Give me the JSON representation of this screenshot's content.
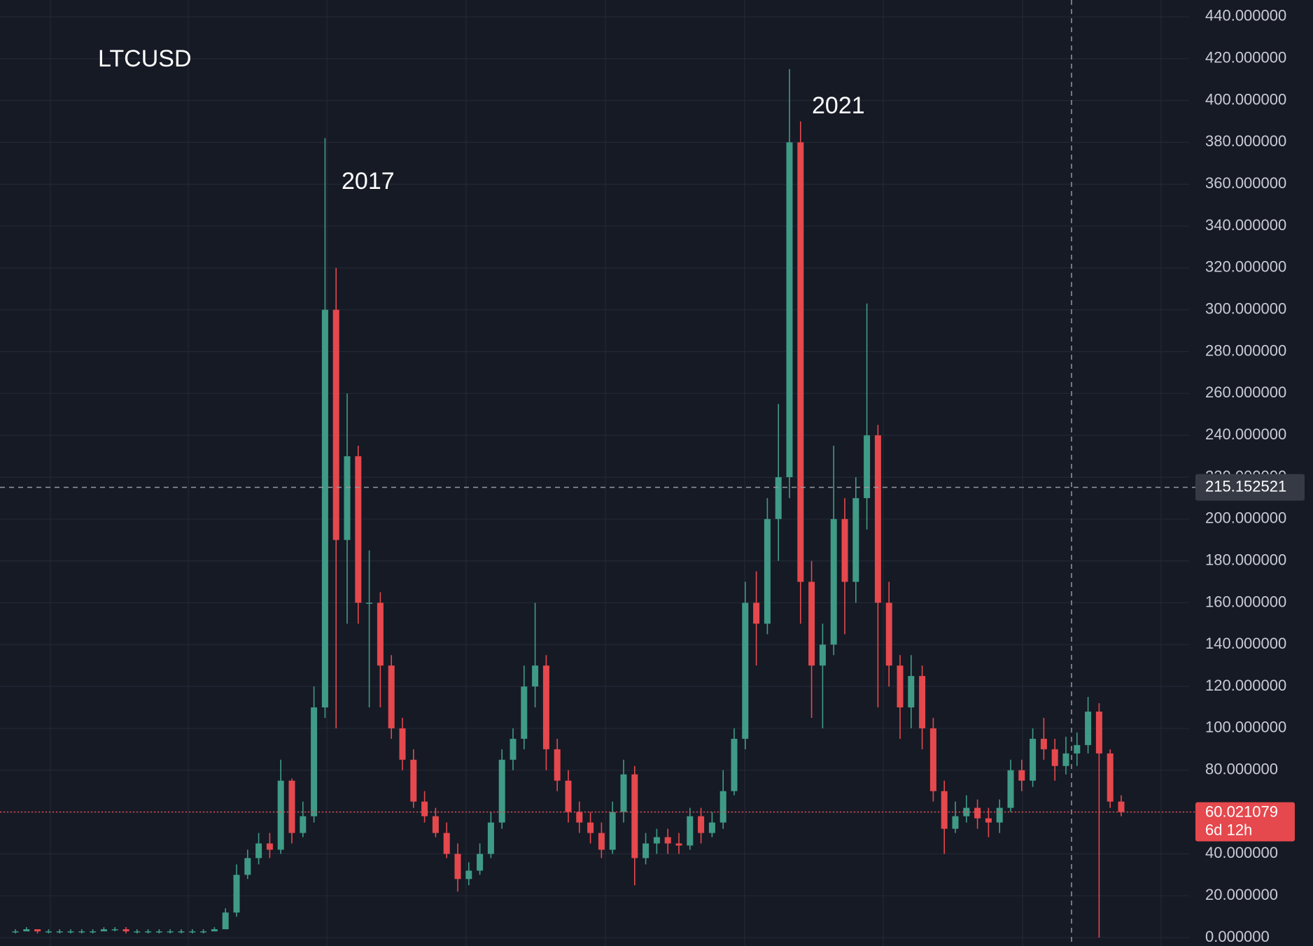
{
  "chart_data": {
    "type": "candlestick",
    "title": "LTCUSD",
    "annotations": [
      "2017",
      "2021"
    ],
    "colors": {
      "up": "#3f9b86",
      "down": "#e5484d"
    },
    "grid": true,
    "open": [
      3,
      3,
      4,
      3,
      3,
      3,
      3,
      3,
      3,
      4,
      4,
      3,
      3,
      3,
      3,
      3,
      3,
      3,
      3,
      4,
      12,
      30,
      38,
      45,
      42,
      75,
      50,
      58,
      110,
      300,
      190,
      230,
      160,
      160,
      130,
      100,
      85,
      65,
      58,
      50,
      40,
      28,
      32,
      40,
      55,
      85,
      95,
      120,
      130,
      90,
      75,
      60,
      55,
      50,
      42,
      60,
      78,
      38,
      45,
      48,
      45,
      44,
      58,
      50,
      55,
      70,
      95,
      160,
      150,
      200,
      220,
      380,
      170,
      130,
      140,
      200,
      170,
      210,
      240,
      160,
      130,
      110,
      125,
      100,
      70,
      52,
      58,
      62,
      57,
      55,
      62,
      80,
      75,
      95,
      90,
      82,
      88,
      92,
      108,
      88,
      65
    ],
    "high": [
      4,
      5,
      4,
      4,
      4,
      4,
      4,
      4,
      5,
      5,
      5,
      4,
      4,
      4,
      4,
      4,
      4,
      4,
      5,
      14,
      35,
      42,
      50,
      50,
      85,
      76,
      65,
      120,
      382,
      320,
      260,
      235,
      185,
      165,
      135,
      105,
      90,
      70,
      62,
      55,
      45,
      36,
      45,
      60,
      90,
      100,
      130,
      160,
      135,
      95,
      80,
      65,
      60,
      55,
      65,
      85,
      82,
      50,
      52,
      52,
      50,
      62,
      62,
      60,
      80,
      100,
      170,
      175,
      210,
      255,
      415,
      390,
      180,
      150,
      235,
      210,
      220,
      303,
      245,
      170,
      135,
      135,
      130,
      105,
      75,
      65,
      68,
      66,
      62,
      66,
      85,
      85,
      100,
      105,
      95,
      96,
      98,
      115,
      112,
      90,
      68
    ],
    "low": [
      2,
      3,
      2,
      2,
      2,
      2,
      2,
      2,
      3,
      3,
      2,
      2,
      2,
      2,
      2,
      2,
      2,
      2,
      3,
      4,
      10,
      28,
      35,
      38,
      40,
      45,
      48,
      55,
      105,
      100,
      150,
      150,
      110,
      110,
      95,
      80,
      62,
      55,
      48,
      38,
      22,
      25,
      30,
      38,
      52,
      80,
      90,
      110,
      80,
      70,
      55,
      50,
      45,
      38,
      40,
      55,
      25,
      35,
      40,
      40,
      40,
      42,
      45,
      48,
      52,
      68,
      90,
      130,
      145,
      180,
      210,
      150,
      105,
      100,
      135,
      145,
      160,
      195,
      110,
      120,
      95,
      100,
      90,
      65,
      40,
      50,
      55,
      52,
      48,
      50,
      60,
      70,
      72,
      85,
      75,
      78,
      82,
      88,
      0,
      62,
      58
    ],
    "close": [
      3,
      4,
      3,
      3,
      3,
      3,
      3,
      3,
      4,
      4,
      3,
      3,
      3,
      3,
      3,
      3,
      3,
      3,
      4,
      12,
      30,
      38,
      45,
      42,
      75,
      50,
      58,
      110,
      300,
      190,
      230,
      160,
      160,
      130,
      100,
      85,
      65,
      58,
      50,
      40,
      28,
      32,
      40,
      55,
      85,
      95,
      120,
      130,
      90,
      75,
      60,
      55,
      50,
      42,
      60,
      78,
      38,
      45,
      48,
      45,
      44,
      58,
      50,
      55,
      70,
      95,
      160,
      150,
      200,
      220,
      380,
      170,
      130,
      140,
      200,
      170,
      210,
      240,
      160,
      130,
      110,
      125,
      100,
      70,
      52,
      58,
      62,
      57,
      55,
      62,
      80,
      75,
      95,
      90,
      82,
      88,
      92,
      108,
      88,
      65,
      60
    ],
    "ylim": [
      -4,
      448
    ],
    "yticks": [
      {
        "value": 0,
        "label": "0.000000"
      },
      {
        "value": 20,
        "label": "20.000000"
      },
      {
        "value": 40,
        "label": "40.000000"
      },
      {
        "value": 60,
        "label": "60.000000"
      },
      {
        "value": 80,
        "label": "80.000000"
      },
      {
        "value": 100,
        "label": "100.000000"
      },
      {
        "value": 120,
        "label": "120.000000"
      },
      {
        "value": 140,
        "label": "140.000000"
      },
      {
        "value": 160,
        "label": "160.000000"
      },
      {
        "value": 180,
        "label": "180.000000"
      },
      {
        "value": 200,
        "label": "200.000000"
      },
      {
        "value": 220,
        "label": "220.000000"
      },
      {
        "value": 240,
        "label": "240.000000"
      },
      {
        "value": 260,
        "label": "260.000000"
      },
      {
        "value": 280,
        "label": "280.000000"
      },
      {
        "value": 300,
        "label": "300.000000"
      },
      {
        "value": 320,
        "label": "320.000000"
      },
      {
        "value": 340,
        "label": "340.000000"
      },
      {
        "value": 360,
        "label": "360.000000"
      },
      {
        "value": 380,
        "label": "380.000000"
      },
      {
        "value": 400,
        "label": "400.000000"
      },
      {
        "value": 420,
        "label": "420.000000"
      },
      {
        "value": 440,
        "label": "440.000000"
      }
    ],
    "crosshair_price": 215.152521,
    "last_price": 60.021079,
    "countdown": "6d 12h"
  }
}
